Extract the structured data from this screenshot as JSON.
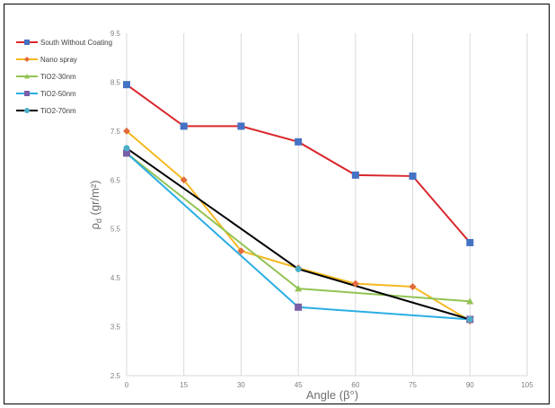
{
  "chart_data": {
    "type": "line",
    "title": "",
    "xlabel": "Angle (β°)",
    "ylabel": "ρd (gr/m²)",
    "xlim": [
      0,
      105
    ],
    "ylim": [
      2.5,
      9.5
    ],
    "x_ticks": [
      "0",
      "15",
      "30",
      "45",
      "60",
      "75",
      "90",
      "105"
    ],
    "y_ticks": [
      "2.5",
      "3.5",
      "4.5",
      "5.5",
      "6.5",
      "7.5",
      "8.5",
      "9.5"
    ],
    "grid": "vertical",
    "legend_position": "top-left",
    "series": [
      {
        "name": "South Without Coating",
        "color": "#d9272b",
        "marker": "square",
        "marker_color": "#4472c4",
        "x": [
          0,
          15,
          30,
          45,
          60,
          75,
          90
        ],
        "values": [
          8.45,
          7.6,
          7.6,
          7.28,
          6.6,
          6.58,
          5.22
        ]
      },
      {
        "name": "Nano spray",
        "color": "#f5b921",
        "marker": "diamond",
        "marker_color": "#e26b3c",
        "x": [
          0,
          15,
          30,
          45,
          60,
          75,
          90
        ],
        "values": [
          7.5,
          6.5,
          5.05,
          4.7,
          4.38,
          4.32,
          3.62
        ]
      },
      {
        "name": "TiO2-30nm",
        "color": "#92c353",
        "marker": "triangle",
        "marker_color": "#92c353",
        "x": [
          0,
          45,
          90
        ],
        "values": [
          7.05,
          4.28,
          4.02
        ]
      },
      {
        "name": "TiO2-50nm",
        "color": "#2aaee3",
        "marker": "square",
        "marker_color": "#7a5fa8",
        "x": [
          0,
          45,
          90
        ],
        "values": [
          7.05,
          3.9,
          3.65
        ]
      },
      {
        "name": "TiO2-70nm",
        "color": "#000000",
        "marker": "circle",
        "marker_color": "#4aaec8",
        "x": [
          0,
          45,
          90
        ],
        "values": [
          7.15,
          4.68,
          3.65
        ]
      }
    ]
  }
}
